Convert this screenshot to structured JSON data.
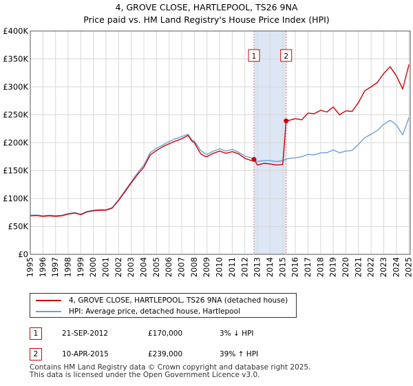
{
  "title_line1": "4, GROVE CLOSE, HARTLEPOOL, TS26 9NA",
  "title_line2": "Price paid vs. HM Land Registry's House Price Index (HPI)",
  "chart_data": {
    "type": "line",
    "xlim": [
      1995.0,
      2025.1
    ],
    "ylim": [
      0,
      400000
    ],
    "x_ticks": [
      1995,
      1996,
      1997,
      1998,
      1999,
      2000,
      2001,
      2002,
      2003,
      2004,
      2005,
      2006,
      2007,
      2008,
      2009,
      2010,
      2011,
      2012,
      2013,
      2014,
      2015,
      2016,
      2017,
      2018,
      2019,
      2020,
      2021,
      2022,
      2023,
      2024,
      2025
    ],
    "y_ticks": [
      0,
      50000,
      100000,
      150000,
      200000,
      250000,
      300000,
      350000,
      400000
    ],
    "y_tick_labels": [
      "£0",
      "£50K",
      "£100K",
      "£150K",
      "£200K",
      "£250K",
      "£300K",
      "£350K",
      "£400K"
    ],
    "grid": true,
    "shaded_region": [
      2012.72,
      2015.27
    ],
    "colors": {
      "property": "#cc0000",
      "hpi": "#6a9fd4",
      "shade": "#dce6f5",
      "grid": "#d8d8d8"
    },
    "series": [
      {
        "name": "4, GROVE CLOSE, HARTLEPOOL, TS26 9NA (detached house)",
        "color": "#cc0000",
        "x": [
          1995.0,
          1995.5,
          1996.0,
          1996.5,
          1997.0,
          1997.5,
          1998.0,
          1998.5,
          1999.0,
          1999.5,
          2000.0,
          2000.5,
          2001.0,
          2001.5,
          2002.0,
          2002.5,
          2003.0,
          2003.5,
          2004.0,
          2004.5,
          2005.0,
          2005.5,
          2006.0,
          2006.5,
          2007.0,
          2007.5,
          2007.8,
          2008.0,
          2008.5,
          2008.8,
          2009.0,
          2009.5,
          2010.0,
          2010.5,
          2011.0,
          2011.5,
          2012.0,
          2012.5,
          2012.72,
          2013.0,
          2013.5,
          2014.0,
          2014.5,
          2015.0,
          2015.27,
          2015.5,
          2016.0,
          2016.5,
          2017.0,
          2017.5,
          2018.0,
          2018.5,
          2019.0,
          2019.5,
          2020.0,
          2020.5,
          2021.0,
          2021.5,
          2022.0,
          2022.5,
          2023.0,
          2023.5,
          2024.0,
          2024.5,
          2025.0
        ],
        "values": [
          69000,
          69500,
          68000,
          69000,
          68000,
          69000,
          72000,
          74000,
          71000,
          76000,
          78000,
          79000,
          79000,
          83000,
          97000,
          112000,
          128000,
          143000,
          156000,
          178000,
          186000,
          193000,
          198000,
          203000,
          207000,
          213000,
          203000,
          200000,
          180000,
          176000,
          175000,
          181000,
          185000,
          181000,
          184000,
          180000,
          172000,
          168000,
          170000,
          160000,
          163000,
          162000,
          160000,
          161000,
          239000,
          240000,
          243000,
          241000,
          253000,
          252000,
          258000,
          255000,
          264000,
          250000,
          257000,
          256000,
          272000,
          293000,
          300000,
          308000,
          324000,
          336000,
          320000,
          296000,
          340000
        ]
      },
      {
        "name": "HPI: Average price, detached house, Hartlepool",
        "color": "#6a9fd4",
        "x": [
          1995.0,
          1995.5,
          1996.0,
          1996.5,
          1997.0,
          1997.5,
          1998.0,
          1998.5,
          1999.0,
          1999.5,
          2000.0,
          2000.5,
          2001.0,
          2001.5,
          2002.0,
          2002.5,
          2003.0,
          2003.5,
          2004.0,
          2004.5,
          2005.0,
          2005.5,
          2006.0,
          2006.5,
          2007.0,
          2007.5,
          2007.8,
          2008.0,
          2008.5,
          2008.8,
          2009.0,
          2009.5,
          2010.0,
          2010.5,
          2011.0,
          2011.5,
          2012.0,
          2012.5,
          2013.0,
          2013.5,
          2014.0,
          2014.5,
          2015.0,
          2015.5,
          2016.0,
          2016.5,
          2017.0,
          2017.5,
          2018.0,
          2018.5,
          2019.0,
          2019.5,
          2020.0,
          2020.5,
          2021.0,
          2021.5,
          2022.0,
          2022.5,
          2023.0,
          2023.5,
          2024.0,
          2024.5,
          2025.0
        ],
        "values": [
          70000,
          70500,
          69000,
          70000,
          69500,
          70000,
          73000,
          75000,
          72000,
          77000,
          79000,
          80000,
          80000,
          84000,
          98000,
          114000,
          130000,
          146000,
          160000,
          182000,
          190000,
          196000,
          202000,
          207000,
          211000,
          215000,
          205000,
          203000,
          186000,
          181000,
          179000,
          185000,
          189000,
          185000,
          188000,
          183000,
          176000,
          173000,
          166000,
          168000,
          168000,
          166000,
          168000,
          172000,
          173000,
          175000,
          179000,
          178000,
          182000,
          182000,
          187000,
          182000,
          185000,
          186000,
          197000,
          209000,
          215000,
          222000,
          233000,
          240000,
          232000,
          214000,
          245000
        ]
      }
    ],
    "markers": [
      {
        "label": "1",
        "x": 2012.72,
        "y": 170000
      },
      {
        "label": "2",
        "x": 2015.27,
        "y": 239000
      }
    ]
  },
  "legend": {
    "items": [
      {
        "label": "4, GROVE CLOSE, HARTLEPOOL, TS26 9NA (detached house)",
        "color": "#cc0000"
      },
      {
        "label": "HPI: Average price, detached house, Hartlepool",
        "color": "#6a9fd4"
      }
    ]
  },
  "sales": [
    {
      "num": "1",
      "date": "21-SEP-2012",
      "price": "£170,000",
      "hpi": "3% ↓ HPI"
    },
    {
      "num": "2",
      "date": "10-APR-2015",
      "price": "£239,000",
      "hpi": "39% ↑ HPI"
    }
  ],
  "footer": {
    "line1": "Contains HM Land Registry data © Crown copyright and database right 2025.",
    "line2": "This data is licensed under the Open Government Licence v3.0."
  }
}
